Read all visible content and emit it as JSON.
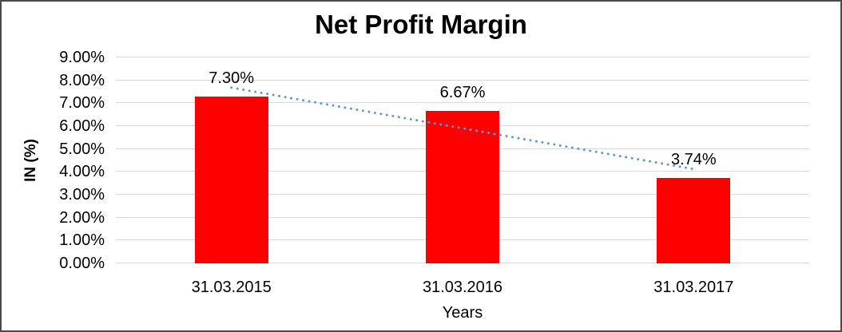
{
  "window": {
    "border_color": "#4a4a4a",
    "background": "#FFFFFF"
  },
  "chart_data": {
    "type": "bar",
    "title": "Net Profit Margin",
    "xlabel": "Years",
    "ylabel": "IN (%)",
    "categories": [
      "31.03.2015",
      "31.03.2016",
      "31.03.2017"
    ],
    "values": [
      7.3,
      6.67,
      3.74
    ],
    "data_labels": [
      "7.30%",
      "6.67%",
      "3.74%"
    ],
    "y_ticks": [
      "0.00%",
      "1.00%",
      "2.00%",
      "3.00%",
      "4.00%",
      "5.00%",
      "6.00%",
      "7.00%",
      "8.00%",
      "9.00%"
    ],
    "ylim": [
      0,
      9
    ],
    "y_tick_step": 1,
    "grid": true,
    "legend": "none",
    "bar_color": "#FF0000",
    "grid_color": "#D9D9D9",
    "text_color": "#000000",
    "trendline": {
      "type": "linear",
      "style": "dotted",
      "color": "#5B9BD5"
    }
  }
}
